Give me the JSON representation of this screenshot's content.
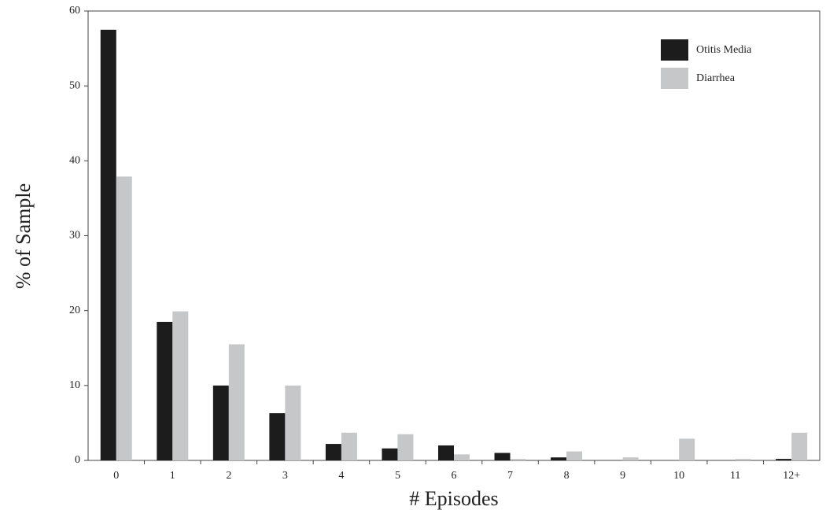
{
  "chart_data": {
    "type": "bar",
    "xlabel": "# Episodes",
    "ylabel": "% of Sample",
    "categories": [
      "0",
      "1",
      "2",
      "3",
      "4",
      "5",
      "6",
      "7",
      "8",
      "9",
      "10",
      "11",
      "12+"
    ],
    "series": [
      {
        "name": "Otitis Media",
        "color": "#1c1c1c",
        "values": [
          57.5,
          18.5,
          10,
          6.3,
          2.2,
          1.6,
          2.0,
          1.0,
          0.4,
          0,
          0,
          0,
          0.2
        ]
      },
      {
        "name": "Diarrhea",
        "color": "#c6c7c9",
        "values": [
          37.9,
          19.9,
          15.5,
          10,
          3.7,
          3.5,
          0.8,
          0.2,
          1.2,
          0.4,
          2.9,
          0.2,
          3.7
        ]
      }
    ],
    "ylim": [
      0,
      60
    ],
    "yticks": [
      0,
      10,
      20,
      30,
      40,
      50,
      60
    ],
    "grid": false,
    "legend": "upper right"
  }
}
